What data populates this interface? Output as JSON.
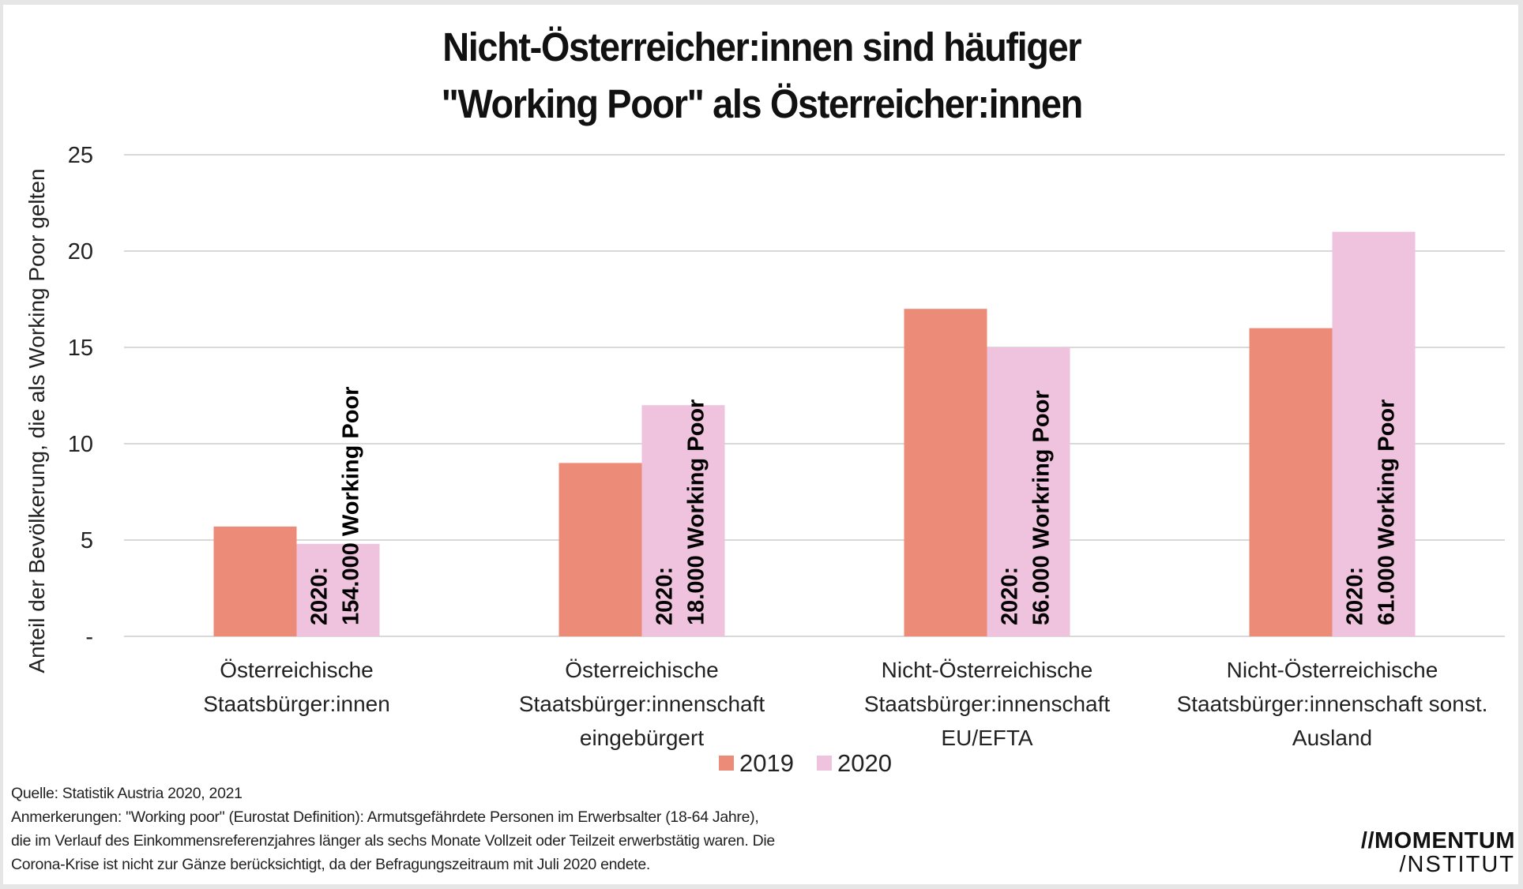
{
  "title": {
    "line1": "Nicht-Österreicher:innen sind häufiger",
    "line2": "\"Working Poor\" als Österreicher:innen"
  },
  "colors": {
    "series_2019": "#ec8c78",
    "series_2020": "#efc2dd",
    "grid": "#d9d9d9",
    "text": "#222222"
  },
  "chart_data": {
    "type": "bar",
    "title": "Nicht-Österreicher:innen sind häufiger \"Working Poor\" als Österreicher:innen",
    "xlabel": "",
    "ylabel": "Anteil der Bevölkerung, die als Working Poor gelten",
    "ylim": [
      0,
      25
    ],
    "yticks": [
      0,
      5,
      10,
      15,
      20,
      25
    ],
    "ytick_labels": [
      "-",
      "5",
      "10",
      "15",
      "20",
      "25"
    ],
    "grid": true,
    "legend_position": "bottom-center",
    "categories": [
      [
        "Österreichische",
        "Staatsbürger:innen"
      ],
      [
        "Österreichische",
        "Staatsbürger:innenschaft",
        "eingebürgert"
      ],
      [
        "Nicht-Österreichische",
        "Staatsbürger:innenschaft",
        "EU/EFTA"
      ],
      [
        "Nicht-Österreichische",
        "Staatsbürger:innenschaft sonst.",
        "Ausland"
      ]
    ],
    "series": [
      {
        "name": "2019",
        "values": [
          5.7,
          9,
          17,
          16
        ]
      },
      {
        "name": "2020",
        "values": [
          4.8,
          12,
          15,
          21
        ]
      }
    ],
    "bar_annotations": [
      [
        "2020:",
        "154.000 Working Poor"
      ],
      [
        "2020:",
        "18.000 Working Poor"
      ],
      [
        "2020:",
        "56.000 Workring Poor"
      ],
      [
        "2020:",
        "61.000 Working Poor"
      ]
    ]
  },
  "notes": {
    "source": "Quelle: Statistik Austria 2020, 2021",
    "remarks": [
      "Anmerkerungen: \"Working poor\" (Eurostat Definition): Armutsgefährdete Personen im Erwerbsalter (18-64 Jahre),",
      "die im Verlauf des Einkommensreferenzjahres länger als sechs Monate Vollzeit oder Teilzeit erwerbstätig waren. Die",
      "Corona-Krise ist nicht zur Gänze berücksichtigt, da der Befragungszeitraum mit Juli 2020 endete."
    ]
  },
  "logo": {
    "line1": "//MOMENTUM",
    "line2": "/NSTITUT"
  }
}
